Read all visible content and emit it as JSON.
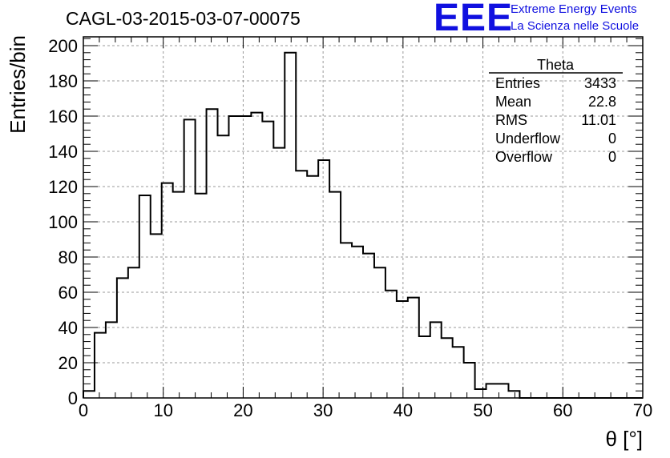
{
  "title": "CAGL-03-2015-03-07-00075",
  "logo": {
    "mark": "EEE",
    "line1": "Extreme Energy Events",
    "line2": "La Scienza nelle Scuole",
    "color": "#1010e0"
  },
  "chart_data": {
    "type": "bar",
    "style": "step-histogram",
    "xlabel": "θ [°]",
    "ylabel": "Entries/bin",
    "xlim": [
      0,
      70
    ],
    "ylim": [
      0,
      205
    ],
    "xticks": [
      0,
      10,
      20,
      30,
      40,
      50,
      60,
      70
    ],
    "yticks": [
      0,
      20,
      40,
      60,
      80,
      100,
      120,
      140,
      160,
      180,
      200
    ],
    "grid": true,
    "bin_width": 1.4,
    "values": [
      4,
      37,
      43,
      68,
      74,
      115,
      93,
      122,
      117,
      158,
      116,
      164,
      149,
      160,
      160,
      162,
      157,
      142,
      196,
      129,
      126,
      135,
      117,
      88,
      86,
      82,
      74,
      61,
      55,
      57,
      35,
      43,
      34,
      29,
      20,
      5,
      8,
      8,
      4,
      0,
      0,
      0,
      0,
      0,
      0,
      0,
      0,
      0,
      0,
      0
    ],
    "stats": {
      "name": "Theta",
      "rows": [
        {
          "label": "Entries",
          "value": "3433"
        },
        {
          "label": "Mean",
          "value": "22.8"
        },
        {
          "label": "RMS",
          "value": "11.01"
        },
        {
          "label": "Underflow",
          "value": "0"
        },
        {
          "label": "Overflow",
          "value": "0"
        }
      ]
    }
  }
}
